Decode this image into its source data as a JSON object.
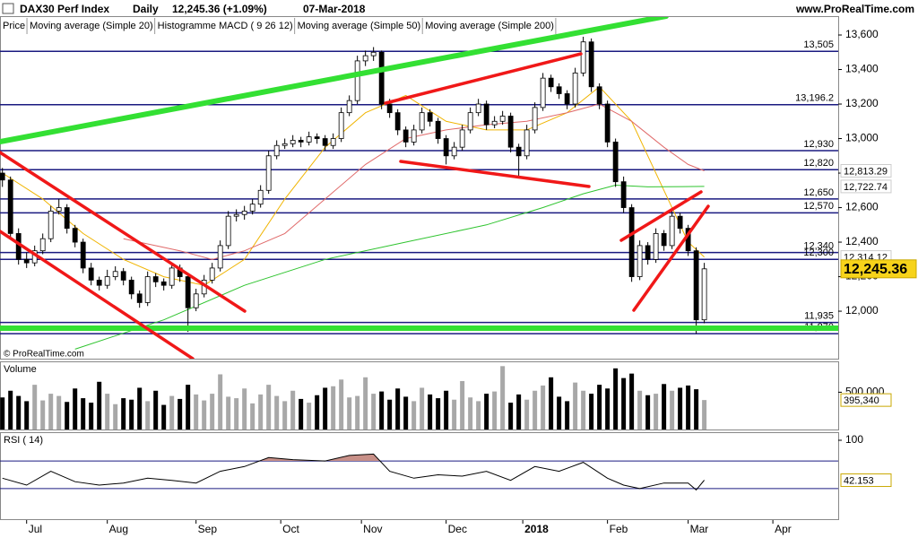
{
  "chart_data": {
    "type": "candlestick",
    "title": "DAX30 Perf Index",
    "period": "Daily",
    "quote": "12,245.36 (+1.09%)",
    "date": "07-Mar-2018",
    "website": "www.ProRealTime.com",
    "copyright": "© ProRealTime.com",
    "price_label": "Price",
    "macd_label": "Histogramme MACD ( 9 26 12)",
    "last_label": "12,245.36",
    "xlim": [
      -0.3,
      103.6
    ],
    "xticks": [
      {
        "value": 3,
        "label": "Jul"
      },
      {
        "value": 13,
        "label": "Aug"
      },
      {
        "value": 24,
        "label": "Sep"
      },
      {
        "value": 34.5,
        "label": "Oct"
      },
      {
        "value": 44.5,
        "label": "Nov"
      },
      {
        "value": 55,
        "label": "Dec"
      },
      {
        "value": 64.5,
        "label": "2018"
      },
      {
        "value": 75,
        "label": "Feb"
      },
      {
        "value": 85,
        "label": "Mar"
      },
      {
        "value": 95.5,
        "label": "Apr"
      }
    ],
    "ylim": [
      11725,
      13704
    ],
    "yticks": [
      {
        "value": 12000,
        "label": "12,000"
      },
      {
        "value": 12200,
        "label": "12,200"
      },
      {
        "value": 12400,
        "label": "12,400"
      },
      {
        "value": 12600,
        "label": "12,600"
      },
      {
        "value": 12800,
        "label": "12,800"
      },
      {
        "value": 13000,
        "label": "13,000"
      },
      {
        "value": 13200,
        "label": "13,200"
      },
      {
        "value": 13400,
        "label": "13,400"
      },
      {
        "value": 13600,
        "label": "13,600"
      }
    ],
    "levels": [
      {
        "value": 13505,
        "label": "13,505"
      },
      {
        "value": 13196.2,
        "label": "13,196.2"
      },
      {
        "value": 12930,
        "label": "12,930"
      },
      {
        "value": 12820,
        "label": "12,820"
      },
      {
        "value": 12650,
        "label": "12,650"
      },
      {
        "value": 12570,
        "label": "12,570"
      },
      {
        "value": 12340,
        "label": "12,340"
      },
      {
        "value": 12300,
        "label": "12,300"
      },
      {
        "value": 11935,
        "label": "11,935"
      },
      {
        "value": 11870,
        "label": "11,870"
      }
    ],
    "ohlc": [
      [
        12800,
        12830,
        12720,
        12760
      ],
      [
        12760,
        12780,
        12420,
        12450
      ],
      [
        12450,
        12480,
        12270,
        12300
      ],
      [
        12300,
        12340,
        12250,
        12280
      ],
      [
        12280,
        12380,
        12260,
        12350
      ],
      [
        12350,
        12450,
        12330,
        12420
      ],
      [
        12420,
        12610,
        12400,
        12580
      ],
      [
        12580,
        12650,
        12560,
        12600
      ],
      [
        12600,
        12620,
        12450,
        12480
      ],
      [
        12480,
        12500,
        12370,
        12400
      ],
      [
        12400,
        12420,
        12220,
        12250
      ],
      [
        12250,
        12280,
        12150,
        12180
      ],
      [
        12180,
        12200,
        12120,
        12150
      ],
      [
        12150,
        12240,
        12130,
        12200
      ],
      [
        12200,
        12260,
        12180,
        12230
      ],
      [
        12230,
        12250,
        12150,
        12180
      ],
      [
        12180,
        12200,
        12070,
        12100
      ],
      [
        12100,
        12120,
        12020,
        12050
      ],
      [
        12050,
        12230,
        12030,
        12200
      ],
      [
        12200,
        12220,
        12140,
        12170
      ],
      [
        12170,
        12190,
        12120,
        12150
      ],
      [
        12150,
        12280,
        12130,
        12250
      ],
      [
        12250,
        12270,
        12170,
        12200
      ],
      [
        12200,
        12220,
        11880,
        12020
      ],
      [
        12020,
        12130,
        12000,
        12100
      ],
      [
        12100,
        12210,
        12080,
        12180
      ],
      [
        12180,
        12280,
        12160,
        12250
      ],
      [
        12250,
        12410,
        12230,
        12380
      ],
      [
        12380,
        12580,
        12360,
        12550
      ],
      [
        12550,
        12590,
        12520,
        12560
      ],
      [
        12560,
        12610,
        12530,
        12580
      ],
      [
        12580,
        12650,
        12560,
        12620
      ],
      [
        12620,
        12730,
        12600,
        12700
      ],
      [
        12700,
        12930,
        12680,
        12900
      ],
      [
        12900,
        12990,
        12880,
        12960
      ],
      [
        12960,
        13000,
        12940,
        12970
      ],
      [
        12970,
        13020,
        12950,
        12990
      ],
      [
        12990,
        13010,
        12950,
        12980
      ],
      [
        12980,
        13040,
        12960,
        13010
      ],
      [
        13010,
        13030,
        12970,
        13000
      ],
      [
        13000,
        13020,
        12930,
        12960
      ],
      [
        12960,
        13030,
        12940,
        13000
      ],
      [
        13000,
        13180,
        12980,
        13150
      ],
      [
        13150,
        13250,
        13130,
        13220
      ],
      [
        13220,
        13480,
        13200,
        13450
      ],
      [
        13450,
        13510,
        13420,
        13480
      ],
      [
        13480,
        13530,
        13450,
        13500
      ],
      [
        13500,
        13510,
        13170,
        13200
      ],
      [
        13200,
        13230,
        13120,
        13150
      ],
      [
        13150,
        13170,
        13020,
        13050
      ],
      [
        13050,
        13070,
        12950,
        12980
      ],
      [
        12980,
        13080,
        12960,
        13050
      ],
      [
        13050,
        13180,
        13030,
        13150
      ],
      [
        13150,
        13170,
        13070,
        13100
      ],
      [
        13100,
        13120,
        12970,
        13000
      ],
      [
        13000,
        13020,
        12850,
        12900
      ],
      [
        12900,
        12980,
        12880,
        12950
      ],
      [
        12950,
        13080,
        12930,
        13050
      ],
      [
        13050,
        13180,
        13030,
        13150
      ],
      [
        13150,
        13230,
        13130,
        13200
      ],
      [
        13200,
        13220,
        13050,
        13080
      ],
      [
        13080,
        13130,
        13060,
        13100
      ],
      [
        13100,
        13160,
        13080,
        13130
      ],
      [
        13130,
        13150,
        12920,
        12950
      ],
      [
        12950,
        12970,
        12780,
        12900
      ],
      [
        12900,
        13080,
        12880,
        13050
      ],
      [
        13050,
        13210,
        13030,
        13180
      ],
      [
        13180,
        13380,
        13160,
        13350
      ],
      [
        13350,
        13370,
        13270,
        13300
      ],
      [
        13300,
        13320,
        13230,
        13260
      ],
      [
        13260,
        13280,
        13170,
        13200
      ],
      [
        13200,
        13410,
        13180,
        13380
      ],
      [
        13380,
        13590,
        13360,
        13560
      ],
      [
        13560,
        13580,
        13270,
        13300
      ],
      [
        13300,
        13320,
        13170,
        13200
      ],
      [
        13200,
        13220,
        12950,
        12980
      ],
      [
        12980,
        13000,
        12720,
        12750
      ],
      [
        12750,
        12780,
        12570,
        12600
      ],
      [
        12600,
        12620,
        12170,
        12200
      ],
      [
        12200,
        12410,
        12180,
        12380
      ],
      [
        12380,
        12400,
        12270,
        12300
      ],
      [
        12300,
        12480,
        12280,
        12450
      ],
      [
        12450,
        12470,
        12350,
        12380
      ],
      [
        12380,
        12580,
        12360,
        12550
      ],
      [
        12550,
        12570,
        12450,
        12480
      ],
      [
        12480,
        12500,
        12320,
        12350
      ],
      [
        12350,
        12370,
        11870,
        11950
      ],
      [
        11950,
        12280,
        11930,
        12245.36
      ]
    ],
    "series": [
      {
        "name": "Moving average (Simple 20)",
        "color": "#f0b400",
        "last_label": "12,314.12",
        "x": [
          0,
          5,
          10,
          15,
          20,
          25,
          30,
          35,
          40,
          45,
          50,
          55,
          60,
          65,
          70,
          74,
          78,
          82,
          85,
          87
        ],
        "values": [
          12800,
          12650,
          12450,
          12300,
          12200,
          12150,
          12300,
          12650,
          12950,
          13150,
          13250,
          13100,
          13050,
          13050,
          13150,
          13300,
          13100,
          12700,
          12400,
          12314.12
        ]
      },
      {
        "name": "Moving average (Simple 50)",
        "color": "#e06a6a",
        "last_label": "12,813.29",
        "x": [
          15,
          22,
          26,
          30,
          35,
          40,
          45,
          50,
          55,
          60,
          65,
          70,
          74,
          78,
          82,
          85,
          87
        ],
        "values": [
          12420,
          12350,
          12300,
          12350,
          12450,
          12650,
          12850,
          13000,
          13050,
          13080,
          13100,
          13150,
          13200,
          13100,
          12950,
          12850,
          12813.29
        ]
      },
      {
        "name": "Moving average (Simple 200)",
        "color": "#2fc42f",
        "last_label": "12,722.74",
        "x": [
          9,
          20,
          30,
          40,
          50,
          60,
          67,
          72,
          76,
          80,
          87
        ],
        "values": [
          11780,
          11950,
          12150,
          12300,
          12400,
          12500,
          12600,
          12680,
          12730,
          12720,
          12722.74
        ]
      }
    ],
    "volume": {
      "title": "Volume",
      "ylim": [
        0,
        902000
      ],
      "yticks": [
        {
          "value": 500000,
          "label": "500,000"
        }
      ],
      "last_label": "395,340",
      "values": [
        430000,
        520000,
        450000,
        380000,
        600000,
        390000,
        480000,
        450000,
        370000,
        550000,
        420000,
        360000,
        640000,
        480000,
        340000,
        420000,
        400000,
        560000,
        380000,
        520000,
        330000,
        450000,
        410000,
        600000,
        470000,
        390000,
        480000,
        740000,
        440000,
        420000,
        550000,
        350000,
        470000,
        600000,
        450000,
        380000,
        520000,
        410000,
        360000,
        460000,
        560000,
        580000,
        670000,
        430000,
        450000,
        700000,
        480000,
        510000,
        400000,
        550000,
        440000,
        380000,
        560000,
        470000,
        420000,
        520000,
        400000,
        650000,
        430000,
        380000,
        480000,
        510000,
        850000,
        360000,
        470000,
        400000,
        520000,
        590000,
        700000,
        440000,
        380000,
        630000,
        520000,
        480000,
        600000,
        550000,
        820000,
        690000,
        750000,
        520000,
        460000,
        480000,
        610000,
        520000,
        560000,
        590000,
        540000,
        395340
      ]
    },
    "rsi": {
      "title": "RSI ( 14)",
      "ylim": [
        -15.6,
        110.4
      ],
      "yticks": [
        100
      ],
      "levels": [
        70,
        30
      ],
      "last_label": "42.153",
      "x": [
        0,
        3,
        6,
        9,
        12,
        15,
        18,
        21,
        24,
        27,
        30,
        33,
        36,
        40,
        43,
        46,
        48,
        51,
        54,
        57,
        60,
        63,
        66,
        69,
        72,
        75,
        77,
        79,
        82,
        85,
        86,
        87
      ],
      "values": [
        45,
        35,
        55,
        40,
        35,
        38,
        45,
        42,
        38,
        55,
        62,
        75,
        72,
        70,
        78,
        80,
        55,
        45,
        50,
        48,
        55,
        42,
        62,
        55,
        68,
        45,
        35,
        30,
        38,
        38,
        28,
        42.153
      ]
    }
  }
}
